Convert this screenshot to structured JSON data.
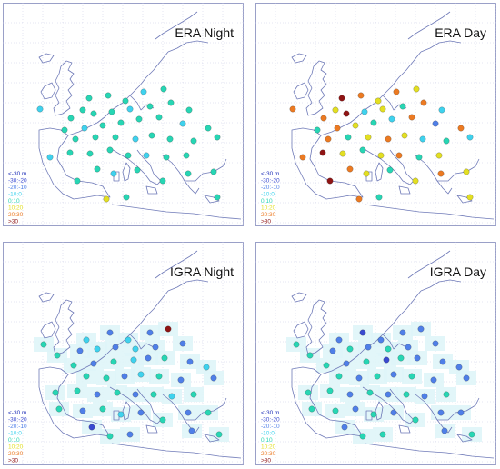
{
  "panels": [
    {
      "title": "ERA Night",
      "style": "era"
    },
    {
      "title": "ERA Day",
      "style": "era"
    },
    {
      "title": "IGRA Night",
      "style": "igra"
    },
    {
      "title": "IGRA Day",
      "style": "igra"
    }
  ],
  "legend": {
    "entries": [
      {
        "label": "<-30 m",
        "color": "#1f2fb8"
      },
      {
        "label": "-30:-20",
        "color": "#3a4ad0"
      },
      {
        "label": "-20:-10",
        "color": "#4f7fe8"
      },
      {
        "label": "-10:0",
        "color": "#3fd2ee"
      },
      {
        "label": "0:10",
        "color": "#27d6b4"
      },
      {
        "label": "10:20",
        "color": "#e3df22"
      },
      {
        "label": "20:30",
        "color": "#ec7a22"
      },
      {
        "label": ">30",
        "color": "#8f1414"
      }
    ]
  },
  "colors": {
    "map_background": "#ffffff",
    "coastline": "#6f7ab8",
    "grid": "#c8cbe6",
    "frame": "#9aa0c8",
    "station_cell": "#dff5f8"
  }
}
